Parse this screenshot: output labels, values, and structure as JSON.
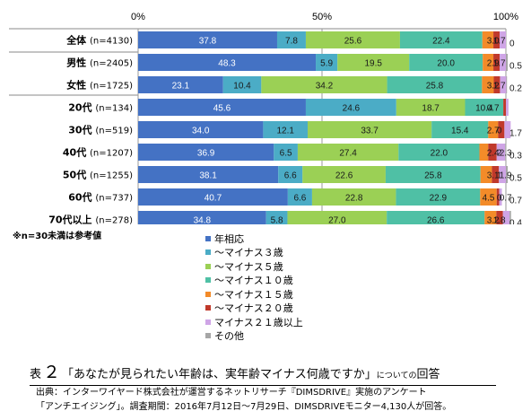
{
  "chart_data": {
    "type": "bar",
    "stacked": "percent",
    "orientation": "horizontal",
    "x_ticks": [
      "0%",
      "50%",
      "100%"
    ],
    "xlim": [
      0,
      100
    ],
    "grid": true,
    "legend_position": "below",
    "categories": [
      {
        "name": "全体",
        "n": "(n=4130)"
      },
      {
        "name": "男性",
        "n": "(n=2405)"
      },
      {
        "name": "女性",
        "n": "(n=1725)"
      },
      {
        "name": "20代",
        "n": "(n=134)"
      },
      {
        "name": "30代",
        "n": "(n=519)"
      },
      {
        "name": "40代",
        "n": "(n=1207)"
      },
      {
        "name": "50代",
        "n": "(n=1255)"
      },
      {
        "name": "60代",
        "n": "(n=737)"
      },
      {
        "name": "70代以上",
        "n": "(n=278)"
      }
    ],
    "series": [
      {
        "name": "年相応",
        "color": "#4472c4",
        "values": [
          37.8,
          48.3,
          23.1,
          45.6,
          34.0,
          36.9,
          38.1,
          40.7,
          34.8
        ]
      },
      {
        "name": "～マイナス３歳",
        "color": "#4bacc6",
        "values": [
          7.8,
          5.9,
          10.4,
          24.6,
          12.1,
          6.5,
          6.6,
          6.6,
          5.8
        ]
      },
      {
        "name": "～マイナス５歳",
        "color": "#9bd055",
        "values": [
          25.6,
          19.5,
          34.2,
          18.7,
          33.7,
          27.4,
          22.6,
          22.8,
          27.0
        ]
      },
      {
        "name": "～マイナス１０歳",
        "color": "#4fc0a5",
        "values": [
          22.4,
          20.0,
          25.8,
          10.4,
          15.4,
          22.0,
          25.8,
          22.9,
          26.6
        ]
      },
      {
        "name": "～マイナス１５歳",
        "color": "#f38b29",
        "values": [
          3.0,
          2.9,
          3.2,
          0.0,
          2.7,
          2.4,
          3.1,
          4.5,
          3.2
        ]
      },
      {
        "name": "～マイナス２０歳",
        "color": "#c0392b",
        "values": [
          1.7,
          1.7,
          1.7,
          0.7,
          1.7,
          2.3,
          1.9,
          0.7,
          1.8
        ]
      },
      {
        "name": "マイナス２１歳以上",
        "color": "#cfa5e6",
        "values": [
          1.7,
          1.7,
          1.7,
          0.7,
          1.7,
          2.3,
          1.9,
          0.7,
          1.8
        ]
      },
      {
        "name": "その他",
        "color": "#a6a6a6",
        "values": [
          0.0,
          0.5,
          0.2,
          0.0,
          0.0,
          0.3,
          0.5,
          0.0,
          0.4
        ]
      }
    ],
    "data_labels": [
      [
        "37.8",
        "7.8",
        "25.6",
        "22.4",
        "3.0",
        "1.7",
        "0"
      ],
      [
        "48.3",
        "5.9",
        "19.5",
        "20.0",
        "2.9",
        "1.7",
        "0.5"
      ],
      [
        "23.1",
        "10.4",
        "34.2",
        "25.8",
        "3.2",
        "1.7",
        "0.2"
      ],
      [
        "45.6",
        "24.6",
        "18.7",
        "10.4",
        "0.7"
      ],
      [
        "34.0",
        "12.1",
        "33.7",
        "15.4",
        "2.7",
        "0",
        "1.7"
      ],
      [
        "36.9",
        "6.5",
        "27.4",
        "22.0",
        "2.4",
        "2",
        "2.3",
        "0.3"
      ],
      [
        "38.1",
        "6.6",
        "22.6",
        "25.8",
        "3.1",
        "1",
        "1.9",
        "0.5"
      ],
      [
        "40.7",
        "6.6",
        "22.8",
        "22.9",
        "4.5",
        "0",
        "0.7",
        "0.7"
      ],
      [
        "34.8",
        "5.8",
        "27.0",
        "26.6",
        "3.2",
        "1.8",
        "0.4"
      ]
    ]
  },
  "note": "※n=30未満は参考値",
  "caption": {
    "prefix": "表",
    "number": "２",
    "question": "「あなたが見られたい年齢は、実年齢マイナス何歳ですか」",
    "suffix_small": "についての",
    "answer_word": "回答"
  },
  "source": {
    "line1": "出典：インターワイヤード株式会社が運営するネットリサーチ『DIMSDRIVE』実施のアンケート",
    "line2": "「アンチエイジング」。調査期間：2016年7月12日～7月29日、DIMSDRIVEモニター4,130人が回答。"
  }
}
